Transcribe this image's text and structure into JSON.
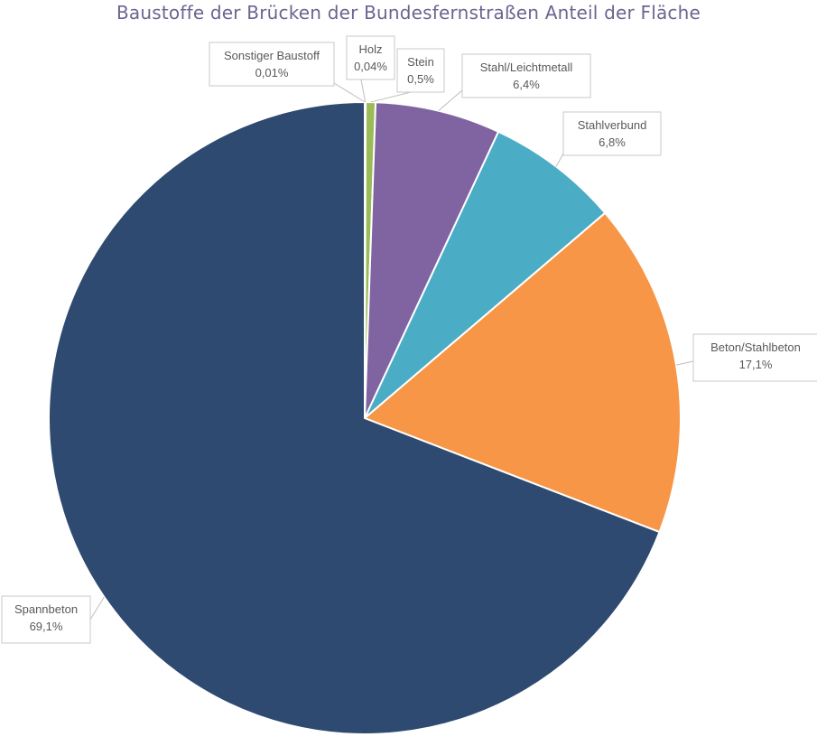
{
  "chart_data": {
    "type": "pie",
    "title": "Baustoffe der Brücken der Bundesfernstraßen Anteil der Fläche",
    "slices": [
      {
        "name": "Sonstiger Baustoff",
        "value": 0.01,
        "label": "0,01%",
        "color": "#7f7f7f"
      },
      {
        "name": "Holz",
        "value": 0.04,
        "label": "0,04%",
        "color": "#c0504d"
      },
      {
        "name": "Stein",
        "value": 0.5,
        "label": "0,5%",
        "color": "#9bbb59"
      },
      {
        "name": "Stahl/Leichtmetall",
        "value": 6.4,
        "label": "6,4%",
        "color": "#8064a2"
      },
      {
        "name": "Stahlverbund",
        "value": 6.8,
        "label": "6,8%",
        "color": "#4bacc6"
      },
      {
        "name": "Beton/Stahlbeton",
        "value": 17.1,
        "label": "17,1%",
        "color": "#f79646"
      },
      {
        "name": "Spannbeton",
        "value": 69.1,
        "label": "69,1%",
        "color": "#2e4a70"
      }
    ]
  }
}
